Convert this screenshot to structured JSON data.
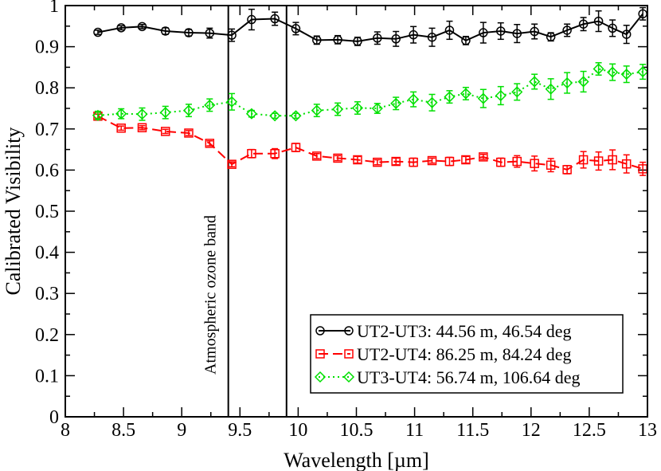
{
  "chart_data": {
    "type": "line",
    "title": "",
    "xlabel": "Wavelength [µm]",
    "ylabel": "Calibrated Visibility",
    "xlim": [
      8,
      13
    ],
    "ylim": [
      0,
      1
    ],
    "xticks": [
      8,
      8.5,
      9,
      9.5,
      10,
      10.5,
      11,
      11.5,
      12,
      12.5,
      13
    ],
    "xtick_labels": [
      "8",
      "8.5",
      "9",
      "9.5",
      "10",
      "10.5",
      "11",
      "11.5",
      "12",
      "12.5",
      "13"
    ],
    "yticks": [
      0,
      0.1,
      0.2,
      0.3,
      0.4,
      0.5,
      0.6,
      0.7,
      0.8,
      0.9,
      1
    ],
    "ytick_labels": [
      "0",
      "0.1",
      "0.2",
      "0.3",
      "0.4",
      "0.5",
      "0.6",
      "0.7",
      "0.8",
      "0.9",
      "1"
    ],
    "grid": false,
    "legend_position": "bottom-right",
    "band": {
      "x_range": [
        9.4,
        9.9
      ],
      "label": "Atmospheric ozone band"
    },
    "x": [
      8.28,
      8.48,
      8.66,
      8.86,
      9.06,
      9.24,
      9.43,
      9.6,
      9.8,
      9.98,
      10.16,
      10.34,
      10.51,
      10.68,
      10.84,
      10.99,
      11.15,
      11.3,
      11.44,
      11.59,
      11.74,
      11.88,
      12.03,
      12.17,
      12.31,
      12.45,
      12.58,
      12.7,
      12.82,
      12.96
    ],
    "series": [
      {
        "name": "UT2-UT3: 44.56 m, 46.54 deg",
        "color": "#000000",
        "marker": "circle",
        "dash": "solid",
        "values": [
          0.935,
          0.946,
          0.949,
          0.938,
          0.934,
          0.933,
          0.928,
          0.966,
          0.968,
          0.944,
          0.916,
          0.917,
          0.913,
          0.921,
          0.919,
          0.929,
          0.923,
          0.94,
          0.915,
          0.934,
          0.938,
          0.932,
          0.937,
          0.924,
          0.94,
          0.955,
          0.962,
          0.945,
          0.93,
          0.98
        ],
        "errors": [
          0.005,
          0.005,
          0.005,
          0.008,
          0.008,
          0.012,
          0.015,
          0.025,
          0.016,
          0.015,
          0.01,
          0.01,
          0.01,
          0.015,
          0.018,
          0.02,
          0.022,
          0.022,
          0.01,
          0.025,
          0.02,
          0.022,
          0.018,
          0.01,
          0.015,
          0.016,
          0.025,
          0.02,
          0.022,
          0.015
        ]
      },
      {
        "name": "UT2-UT4: 86.25 m, 84.24 deg",
        "color": "#ff0000",
        "marker": "square",
        "dash": "dashed",
        "values": [
          0.731,
          0.702,
          0.703,
          0.694,
          0.69,
          0.665,
          0.614,
          0.64,
          0.64,
          0.655,
          0.634,
          0.629,
          0.625,
          0.619,
          0.621,
          0.619,
          0.623,
          0.621,
          0.625,
          0.632,
          0.619,
          0.621,
          0.616,
          0.612,
          0.601,
          0.625,
          0.622,
          0.625,
          0.615,
          0.603
        ],
        "errors": [
          0.005,
          0.005,
          0.005,
          0.005,
          0.006,
          0.006,
          0.006,
          0.01,
          0.012,
          0.01,
          0.006,
          0.006,
          0.008,
          0.006,
          0.008,
          0.01,
          0.006,
          0.01,
          0.008,
          0.006,
          0.01,
          0.014,
          0.018,
          0.016,
          0.01,
          0.02,
          0.022,
          0.024,
          0.022,
          0.016
        ]
      },
      {
        "name": "UT3-UT4: 56.74 m, 106.64 deg",
        "color": "#00e000",
        "marker": "diamond",
        "dash": "dotted",
        "values": [
          0.733,
          0.737,
          0.736,
          0.74,
          0.745,
          0.758,
          0.766,
          0.737,
          0.732,
          0.732,
          0.745,
          0.748,
          0.751,
          0.75,
          0.762,
          0.772,
          0.764,
          0.778,
          0.786,
          0.774,
          0.781,
          0.79,
          0.815,
          0.797,
          0.812,
          0.815,
          0.846,
          0.838,
          0.833,
          0.839
        ],
        "errors": [
          0.01,
          0.012,
          0.015,
          0.015,
          0.015,
          0.015,
          0.02,
          0.008,
          0.006,
          0.006,
          0.015,
          0.015,
          0.015,
          0.012,
          0.015,
          0.018,
          0.02,
          0.015,
          0.015,
          0.022,
          0.022,
          0.02,
          0.018,
          0.025,
          0.025,
          0.025,
          0.015,
          0.02,
          0.02,
          0.018
        ]
      }
    ]
  }
}
